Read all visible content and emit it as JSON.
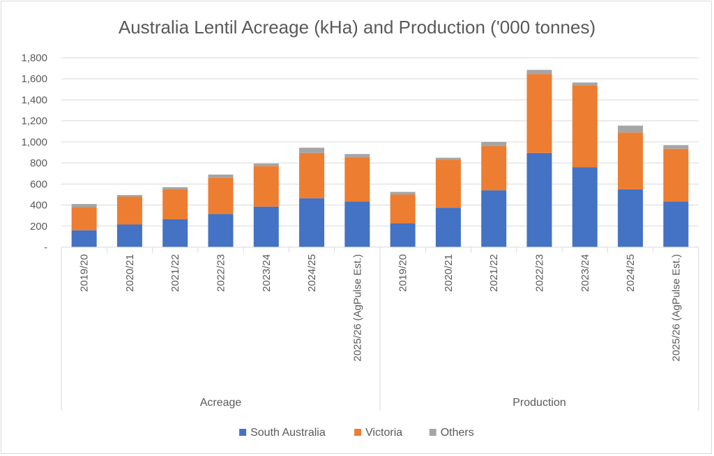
{
  "chart_data": {
    "type": "bar",
    "stacked": true,
    "title": "Australia Lentil Acreage (kHa) and Production ('000 tonnes)",
    "xlabel": "",
    "ylabel": "",
    "ylim": [
      0,
      1800
    ],
    "yticks": [
      {
        "value": 0,
        "label": "-"
      },
      {
        "value": 200,
        "label": "200"
      },
      {
        "value": 400,
        "label": "400"
      },
      {
        "value": 600,
        "label": "600"
      },
      {
        "value": 800,
        "label": "800"
      },
      {
        "value": 1000,
        "label": "1,000"
      },
      {
        "value": 1200,
        "label": "1,200"
      },
      {
        "value": 1400,
        "label": "1,400"
      },
      {
        "value": 1600,
        "label": "1,600"
      },
      {
        "value": 1800,
        "label": "1,800"
      }
    ],
    "grid": true,
    "legend_position": "bottom",
    "groups": [
      {
        "label": "Acreage",
        "count": 7
      },
      {
        "label": "Production",
        "count": 7
      }
    ],
    "categories": [
      "2019/20",
      "2020/21",
      "2021/22",
      "2022/23",
      "2023/24",
      "2024/25",
      "2025/26 (AgPulse Est.)",
      "2019/20",
      "2020/21",
      "2021/22",
      "2022/23",
      "2023/24",
      "2024/25",
      "2025/26 (AgPulse Est.)"
    ],
    "series": [
      {
        "name": "South Australia",
        "color": "#4472c4",
        "values": [
          160,
          215,
          265,
          315,
          385,
          465,
          435,
          225,
          375,
          540,
          895,
          760,
          550,
          435
        ]
      },
      {
        "name": "Victoria",
        "color": "#ed7d31",
        "values": [
          220,
          265,
          285,
          345,
          385,
          430,
          420,
          275,
          455,
          420,
          750,
          780,
          540,
          500
        ]
      },
      {
        "name": "Others",
        "color": "#a5a5a5",
        "values": [
          30,
          15,
          20,
          30,
          25,
          50,
          30,
          25,
          20,
          40,
          40,
          25,
          65,
          35
        ]
      }
    ]
  }
}
